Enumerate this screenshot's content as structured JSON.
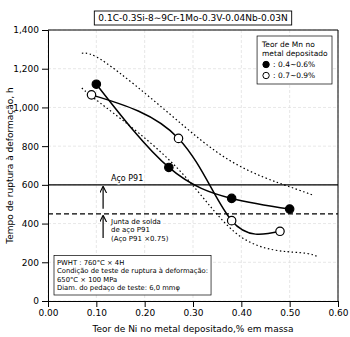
{
  "chart_data": {
    "type": "line",
    "title": "0.1C-0.3Si-8∼9Cr-1Mo-0.3V-0.04Nb-0.03N",
    "xlabel": "Teor de Ni no metal depositado,% em massa",
    "ylabel": "Tempo de ruptura à deformação, h",
    "xlim": [
      0.0,
      0.6
    ],
    "ylim": [
      0,
      1400
    ],
    "xticks": [
      {
        "value": 0.0,
        "label": "0.00"
      },
      {
        "value": 0.1,
        "label": "0.10"
      },
      {
        "value": 0.2,
        "label": "0.20"
      },
      {
        "value": 0.3,
        "label": "0.30"
      },
      {
        "value": 0.4,
        "label": "0.40"
      },
      {
        "value": 0.5,
        "label": "0.50"
      },
      {
        "value": 0.6,
        "label": "0.60"
      }
    ],
    "yticks": [
      0,
      200,
      400,
      600,
      800,
      {
        "value": 1000,
        "label": "1,000"
      },
      {
        "value": 1200,
        "label": "1,200"
      },
      {
        "value": 1400,
        "label": "1,400"
      }
    ],
    "grid": true,
    "legend": "upper right",
    "legend_title": "Teor de Mn no\nmetal depositado",
    "series": [
      {
        "name": ": 0.4∼0.6%",
        "color": "#000000",
        "marker": "circle",
        "line_style": "solid",
        "x": [
          0.1,
          0.25,
          0.38,
          0.5
        ],
        "values": [
          1120,
          690,
          530,
          475
        ]
      },
      {
        "name": ": 0.7∼0.9%",
        "color": "#000000",
        "marker": "circle-open",
        "line_style": "solid",
        "x": [
          0.09,
          0.27,
          0.38,
          0.48
        ],
        "values": [
          1065,
          840,
          415,
          360
        ]
      },
      {
        "color": "#000000",
        "line_style": "dotted",
        "x": [
          0.07,
          0.12,
          0.25,
          0.38,
          0.5,
          0.55
        ],
        "values": [
          1280,
          1230,
          970,
          720,
          590,
          545
        ]
      },
      {
        "color": "#000000",
        "line_style": "dotted",
        "x": [
          0.07,
          0.12,
          0.27,
          0.4,
          0.52,
          0.56
        ],
        "values": [
          1100,
          1000,
          680,
          330,
          250,
          225
        ]
      }
    ],
    "reference_lines": [
      {
        "y": 600,
        "line_style": "solid",
        "label": "Aço P91"
      },
      {
        "y": 450,
        "line_style": "dashed",
        "label": "Junta de solda\nde aço P91\n(Aço P91 ×0.75)"
      }
    ],
    "annotations": [
      "PWHT : 760°C × 4H\nCondição de teste de ruptura à deformação:\n650°C × 100 MPa\nDiam. do pedaço de teste: 6,0 mmφ"
    ]
  }
}
